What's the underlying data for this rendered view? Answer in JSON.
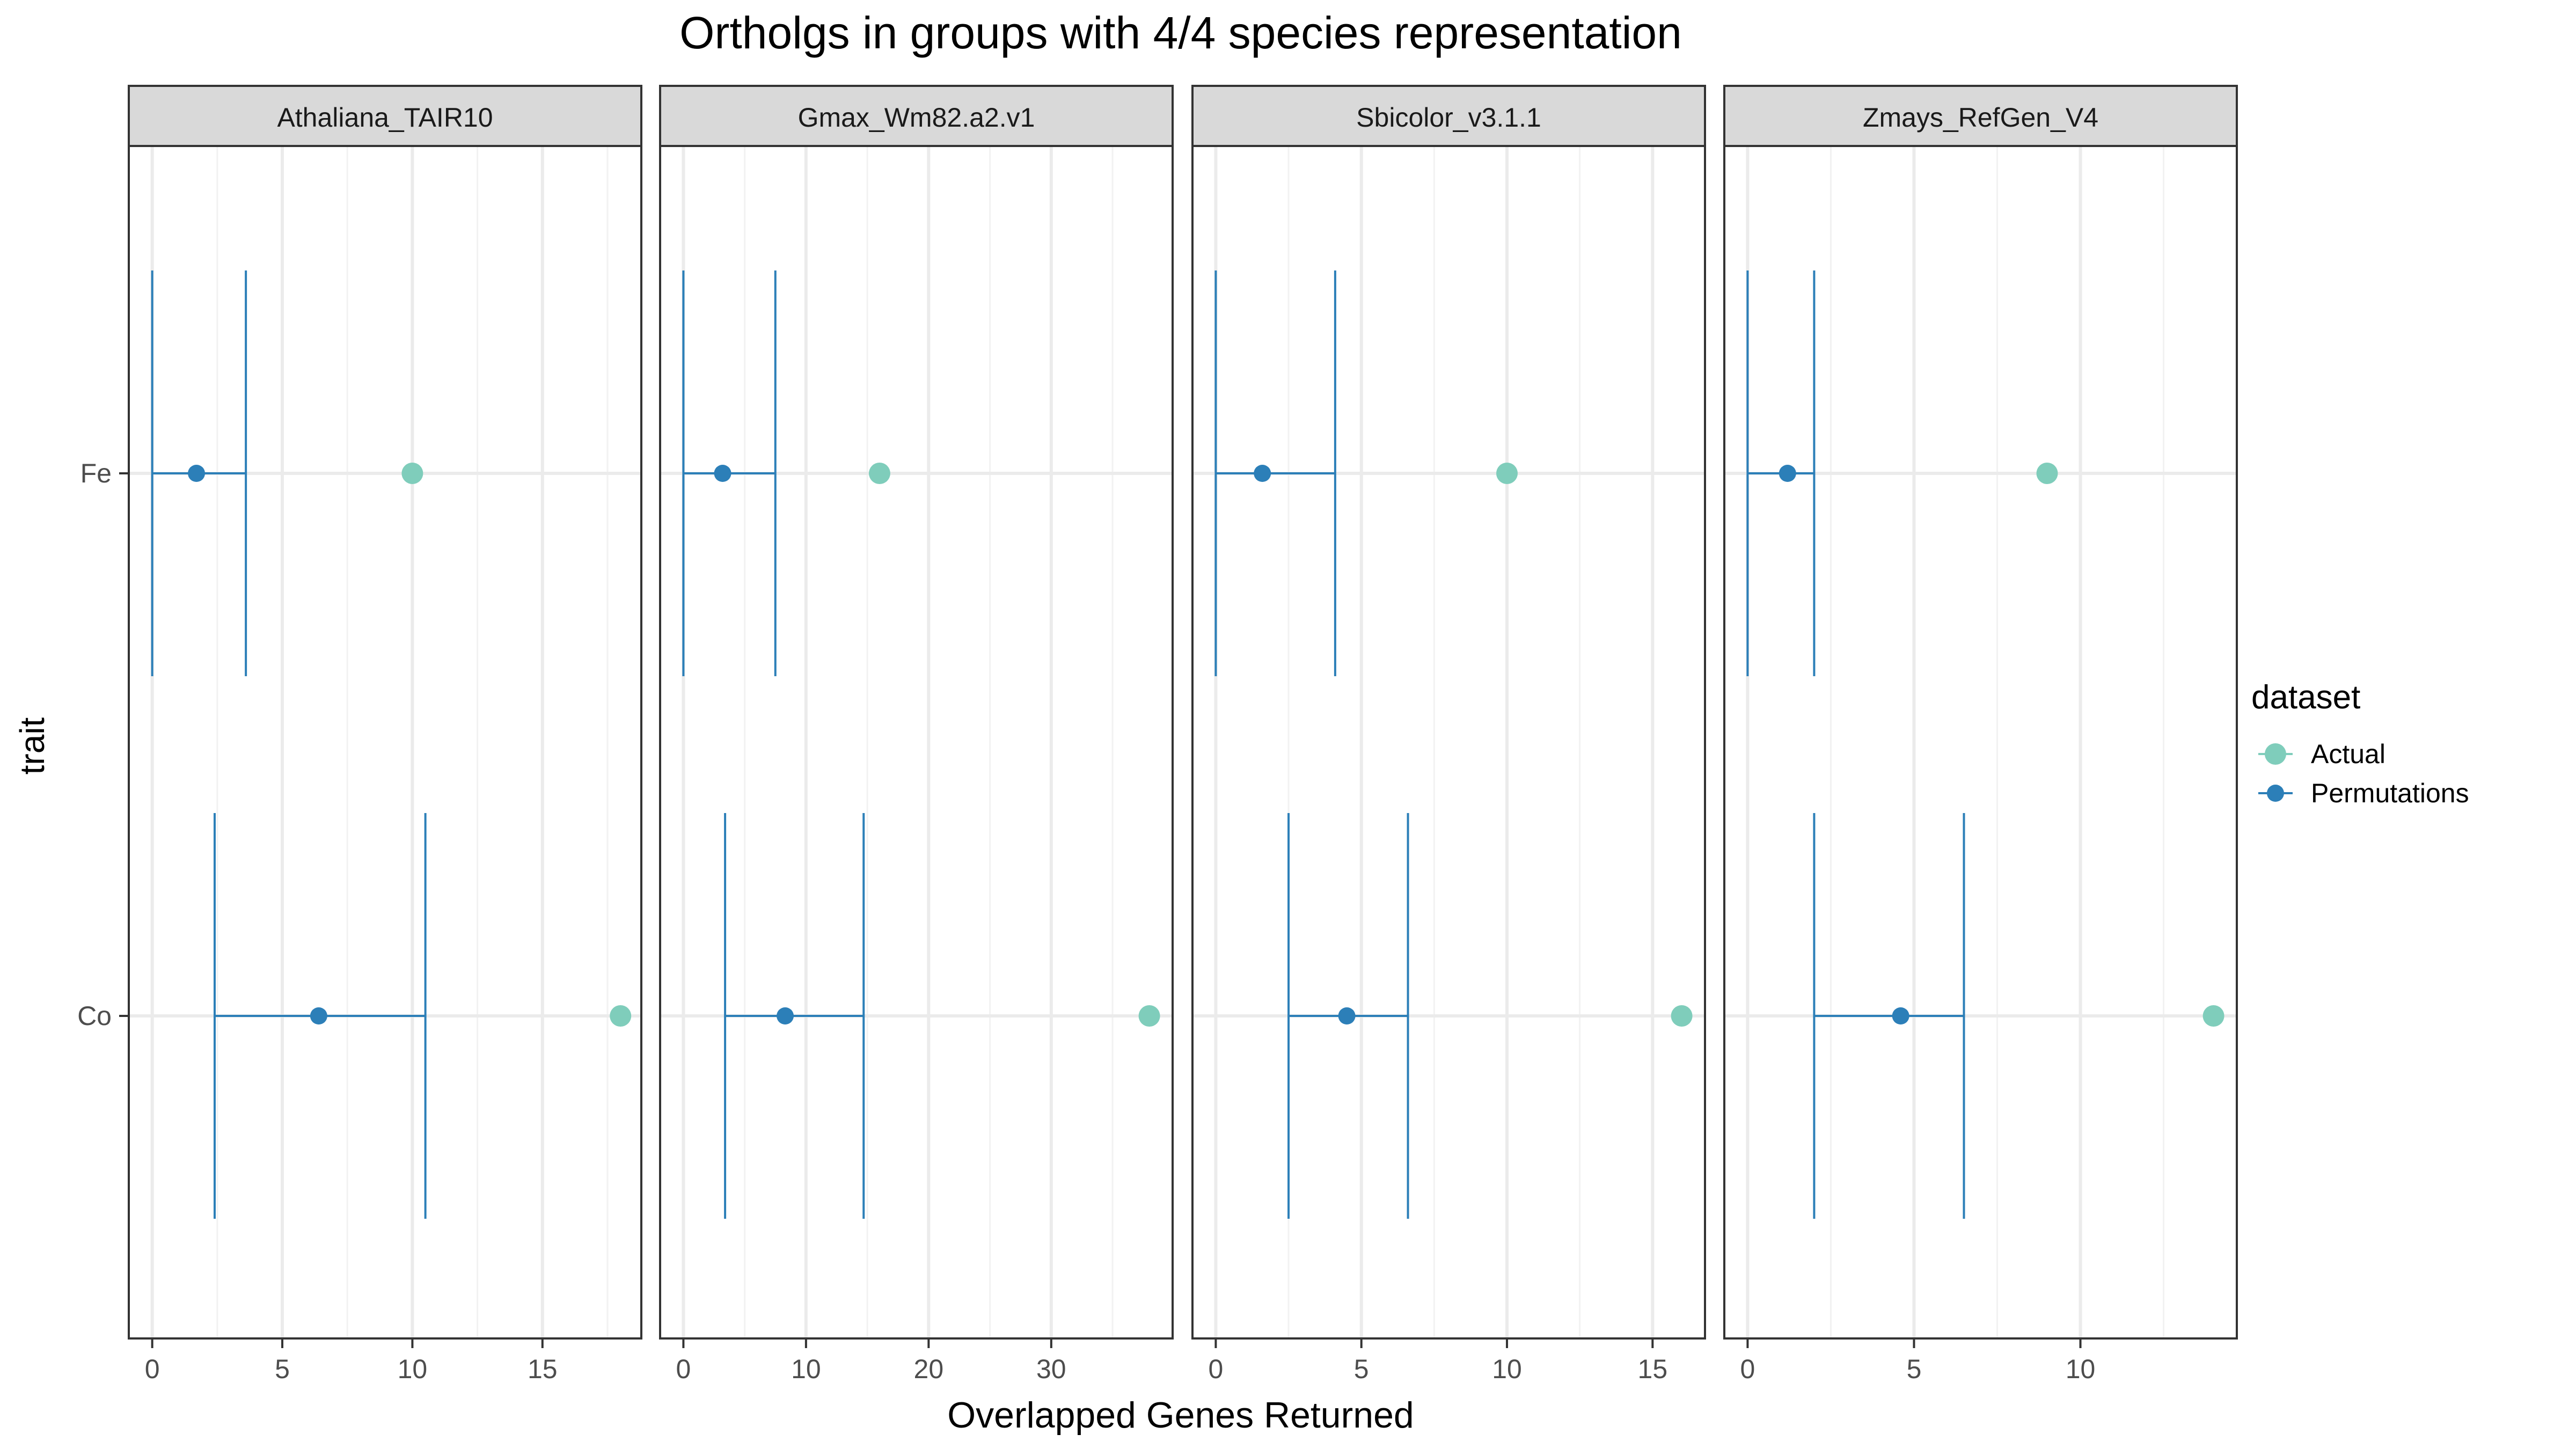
{
  "chart_data": {
    "type": "scatter",
    "title": "Ortholgs in groups with 4/4 species representation",
    "xlabel": "Overlapped Genes Returned",
    "ylabel": "trait",
    "y_categories": [
      "Fe",
      "Co"
    ],
    "legend": {
      "title": "dataset",
      "position": "right",
      "entries": [
        {
          "label": "Actual",
          "color": "#7fcdbb"
        },
        {
          "label": "Permutations",
          "color": "#2c7fb8"
        }
      ]
    },
    "grid": true,
    "facets": [
      {
        "label": "Athaliana_TAIR10",
        "xlim": [
          -0.9,
          18.8
        ],
        "xticks": [
          0,
          5,
          10,
          15
        ],
        "xtick_labels": [
          "0",
          "5",
          "10",
          "15"
        ],
        "points": [
          {
            "trait": "Fe",
            "actual": 10,
            "perm_mean": 1.7,
            "perm_low": 0,
            "perm_high": 3.6
          },
          {
            "trait": "Co",
            "actual": 18,
            "perm_mean": 6.4,
            "perm_low": 2.4,
            "perm_high": 10.5
          }
        ]
      },
      {
        "label": "Gmax_Wm82.a2.v1",
        "xlim": [
          -1.9,
          39.9
        ],
        "xticks": [
          0,
          10,
          20,
          30
        ],
        "xtick_labels": [
          "0",
          "10",
          "20",
          "30"
        ],
        "points": [
          {
            "trait": "Fe",
            "actual": 16,
            "perm_mean": 3.2,
            "perm_low": 0,
            "perm_high": 7.5
          },
          {
            "trait": "Co",
            "actual": 38,
            "perm_mean": 8.3,
            "perm_low": 3.4,
            "perm_high": 14.7
          }
        ]
      },
      {
        "label": "Sbicolor_v3.1.1",
        "xlim": [
          -0.8,
          16.8
        ],
        "xticks": [
          0,
          5,
          10,
          15
        ],
        "xtick_labels": [
          "0",
          "5",
          "10",
          "15"
        ],
        "points": [
          {
            "trait": "Fe",
            "actual": 10,
            "perm_mean": 1.6,
            "perm_low": 0,
            "perm_high": 4.1
          },
          {
            "trait": "Co",
            "actual": 16,
            "perm_mean": 4.5,
            "perm_low": 2.5,
            "perm_high": 6.6
          }
        ]
      },
      {
        "label": "Zmays_RefGen_V4",
        "xlim": [
          -0.7,
          14.7
        ],
        "xticks": [
          0,
          5,
          10
        ],
        "xtick_labels": [
          "0",
          "5",
          "10"
        ],
        "points": [
          {
            "trait": "Fe",
            "actual": 9,
            "perm_mean": 1.2,
            "perm_low": 0,
            "perm_high": 2.0
          },
          {
            "trait": "Co",
            "actual": 14,
            "perm_mean": 4.6,
            "perm_low": 2.0,
            "perm_high": 6.5
          }
        ]
      }
    ]
  }
}
